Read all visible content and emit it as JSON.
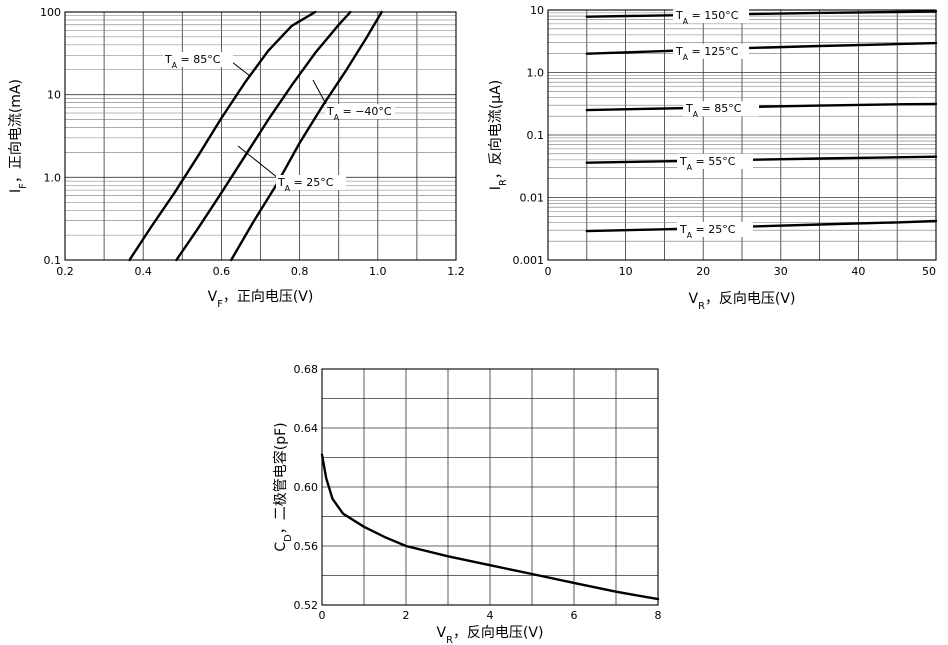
{
  "chart_data": [
    {
      "type": "line",
      "id": "forward",
      "xlabel": "V_F, 正向电压(V)",
      "xlabel_main": "V",
      "xlabel_sub": "F",
      "xlabel_rest": "，正向电压(V)",
      "ylabel": "I_F, 正向电流(mA)",
      "ylabel_main": "I",
      "ylabel_sub": "F",
      "ylabel_rest": "，正向电流(mA)",
      "xlim": [
        0.2,
        1.2
      ],
      "ylim": [
        0.1,
        100
      ],
      "y_scale": "log",
      "x_ticks": [
        "0.2",
        "0.4",
        "0.6",
        "0.8",
        "1.0",
        "1.2"
      ],
      "y_ticks": [
        "0.1",
        "1.0",
        "10",
        "100"
      ],
      "grid": true,
      "series": [
        {
          "name": "T_A = 85°C",
          "label_main": "T",
          "label_sub": "A",
          "label_rest": " = 85°C",
          "x": [
            0.365,
            0.42,
            0.48,
            0.54,
            0.6,
            0.66,
            0.72,
            0.78,
            0.84
          ],
          "y": [
            0.1,
            0.25,
            0.65,
            1.8,
            5.2,
            14,
            34,
            68,
            100
          ]
        },
        {
          "name": "T_A = 25°C",
          "label_main": "T",
          "label_sub": "A",
          "label_rest": " = 25°C",
          "x": [
            0.485,
            0.54,
            0.6,
            0.66,
            0.72,
            0.78,
            0.84,
            0.9,
            0.93
          ],
          "y": [
            0.1,
            0.24,
            0.65,
            1.8,
            5,
            13,
            32,
            70,
            100
          ]
        },
        {
          "name": "T_A = −40°C",
          "label_main": "T",
          "label_sub": "A",
          "label_rest": " = −40°C",
          "x": [
            0.625,
            0.68,
            0.74,
            0.8,
            0.86,
            0.92,
            0.97,
            1.01
          ],
          "y": [
            0.1,
            0.28,
            0.8,
            2.6,
            7.5,
            20,
            48,
            100
          ]
        }
      ]
    },
    {
      "type": "line",
      "id": "reverse",
      "xlabel": "V_R, 反向电压(V)",
      "xlabel_main": "V",
      "xlabel_sub": "R",
      "xlabel_rest": "，反向电压(V)",
      "ylabel": "I_R, 反向电流(μA)",
      "ylabel_main": "I",
      "ylabel_sub": "R",
      "ylabel_rest": "，反向电流(μA)",
      "xlim": [
        0,
        50
      ],
      "ylim": [
        0.001,
        10
      ],
      "y_scale": "log",
      "x_ticks": [
        "0",
        "10",
        "20",
        "30",
        "40",
        "50"
      ],
      "y_ticks": [
        "0.001",
        "0.01",
        "0.1",
        "1.0",
        "10"
      ],
      "grid": true,
      "series": [
        {
          "name": "T_A = 150°C",
          "label_main": "T",
          "label_sub": "A",
          "label_rest": " = 150°C",
          "x": [
            5,
            15,
            25,
            35,
            45,
            50
          ],
          "y": [
            7.8,
            8.2,
            8.6,
            9.0,
            9.3,
            9.5
          ]
        },
        {
          "name": "T_A = 125°C",
          "label_main": "T",
          "label_sub": "A",
          "label_rest": " = 125°C",
          "x": [
            5,
            15,
            25,
            35,
            45,
            50
          ],
          "y": [
            2.0,
            2.2,
            2.45,
            2.65,
            2.85,
            2.95
          ]
        },
        {
          "name": "T_A = 85°C",
          "label_main": "T",
          "label_sub": "A",
          "label_rest": " = 85°C",
          "x": [
            5,
            15,
            25,
            35,
            45,
            50
          ],
          "y": [
            0.25,
            0.265,
            0.28,
            0.295,
            0.31,
            0.315
          ]
        },
        {
          "name": "T_A = 55°C",
          "label_main": "T",
          "label_sub": "A",
          "label_rest": " = 55°C",
          "x": [
            5,
            15,
            25,
            35,
            45,
            50
          ],
          "y": [
            0.036,
            0.038,
            0.04,
            0.042,
            0.044,
            0.045
          ]
        },
        {
          "name": "T_A = 25°C",
          "label_main": "T",
          "label_sub": "A",
          "label_rest": " = 25°C",
          "x": [
            5,
            15,
            25,
            35,
            45,
            50
          ],
          "y": [
            0.0029,
            0.0031,
            0.0034,
            0.0037,
            0.004,
            0.0042
          ]
        }
      ]
    },
    {
      "type": "line",
      "id": "capacitance",
      "xlabel": "V_R, 反向电压(V)",
      "xlabel_main": "V",
      "xlabel_sub": "R",
      "xlabel_rest": "，反向电压(V)",
      "ylabel": "C_D, 二极管电容(pF)",
      "ylabel_main": "C",
      "ylabel_sub": "D",
      "ylabel_rest": "，二极管电容(pF)",
      "xlim": [
        0,
        8
      ],
      "ylim": [
        0.52,
        0.68
      ],
      "y_scale": "linear",
      "x_ticks": [
        "0",
        "2",
        "4",
        "6",
        "8"
      ],
      "y_ticks": [
        "0.52",
        "0.56",
        "0.60",
        "0.64",
        "0.68"
      ],
      "grid": true,
      "series": [
        {
          "x": [
            0,
            0.1,
            0.25,
            0.5,
            1.0,
            1.5,
            2.0,
            3.0,
            4.0,
            5.0,
            6.0,
            7.0,
            8.0
          ],
          "y": [
            0.622,
            0.606,
            0.592,
            0.582,
            0.573,
            0.566,
            0.56,
            0.553,
            0.547,
            0.541,
            0.535,
            0.529,
            0.524
          ]
        }
      ]
    }
  ]
}
